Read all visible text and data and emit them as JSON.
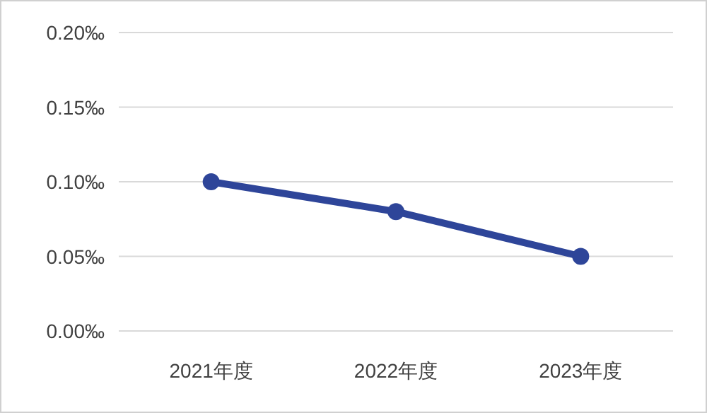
{
  "chart_data": {
    "type": "line",
    "categories": [
      "2021年度",
      "2022年度",
      "2023年度"
    ],
    "series": [
      {
        "color": "#2e4599",
        "values": [
          0.1,
          0.08,
          0.05
        ]
      }
    ],
    "ylim": [
      0,
      0.2
    ],
    "yticks": [
      {
        "value": 0,
        "label": "0.00‰"
      },
      {
        "value": 0.05,
        "label": "0.05‰"
      },
      {
        "value": 0.1,
        "label": "0.10‰"
      },
      {
        "value": 0.15,
        "label": "0.15‰"
      },
      {
        "value": 0.2,
        "label": "0.20‰"
      }
    ],
    "grid": "y",
    "marker": "circle"
  }
}
